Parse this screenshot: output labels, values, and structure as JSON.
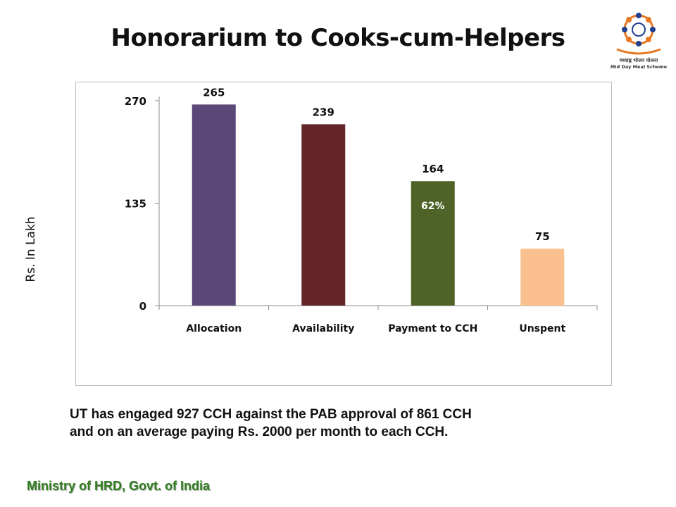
{
  "page": {
    "title": "Honorarium to Cooks-cum-Helpers",
    "note_line1": "UT has engaged 927 CCH against the PAB approval of 861 CCH",
    "note_line2": "and on an average paying Rs. 2000 per month to each CCH.",
    "footer": "Ministry of HRD, Govt. of India",
    "logo": {
      "icon": "mid-day-meal-logo",
      "text_hindi": "मध्याह्न भोजन योजना",
      "text_en": "Mid Day Meal Scheme"
    }
  },
  "chart_data": {
    "type": "bar",
    "title": "",
    "xlabel": "",
    "ylabel": "Rs. In Lakh",
    "categories": [
      "Allocation",
      "Availability",
      "Payment to CCH",
      "Unspent"
    ],
    "values": [
      265,
      239,
      164,
      75
    ],
    "data_labels": [
      "265",
      "239",
      "164",
      "75"
    ],
    "bar_colors": [
      "#5c4876",
      "#632528",
      "#4f6228",
      "#fac090"
    ],
    "yticks": [
      0,
      135,
      270
    ],
    "ylim": [
      0,
      270
    ],
    "annotations": [
      {
        "category": "Payment to CCH",
        "text": "62%",
        "color": "#ffffff"
      }
    ],
    "grid": false,
    "legend": "none"
  }
}
